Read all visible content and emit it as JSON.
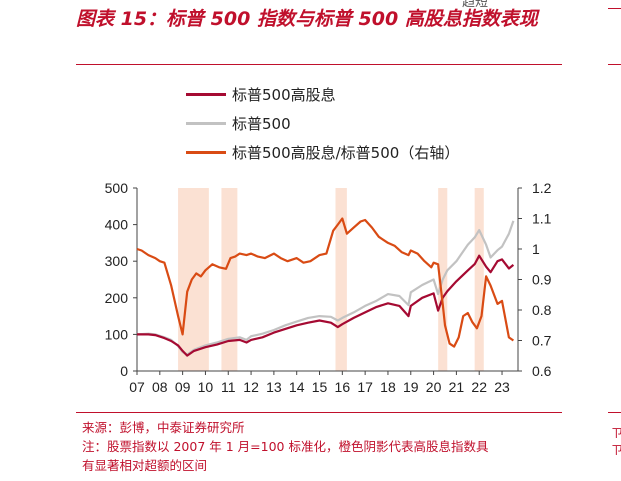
{
  "header": {
    "title": "图表 15：标普 500 指数与标普 500 高股息指数表现",
    "overflow_text": "趋短"
  },
  "edge_marks": [
    "ㄗ",
    "ㄗ"
  ],
  "colors": {
    "accent": "#c0102c",
    "series_high_div": "#a50a32",
    "series_sp500": "#c2c2c2",
    "series_ratio": "#d94b14",
    "shade": "#fbe1d3"
  },
  "footer": {
    "source": "来源：彭博，中泰证券研究所",
    "note_line1": "注：股票指数以 2007 年 1 月=100 标准化，橙色阴影代表高股息指数具",
    "note_line2": "有显著相对超额的区间"
  },
  "chart_data": {
    "type": "line",
    "title": "",
    "x_tick_labels": [
      "07",
      "08",
      "09",
      "10",
      "11",
      "12",
      "13",
      "14",
      "15",
      "16",
      "17",
      "18",
      "19",
      "20",
      "21",
      "22",
      "23"
    ],
    "xlim": [
      2007,
      2023.7
    ],
    "left_axis": {
      "ylim": [
        0,
        500
      ],
      "ticks": [
        "0",
        "100",
        "200",
        "300",
        "400",
        "500"
      ]
    },
    "right_axis": {
      "ylim": [
        0.6,
        1.2
      ],
      "ticks": [
        "0.6",
        "0.7",
        "0.8",
        "0.9",
        "1",
        "1.1",
        "1.2"
      ]
    },
    "shaded_ranges": [
      [
        2008.8,
        2010.15
      ],
      [
        2010.7,
        2011.4
      ],
      [
        2015.7,
        2016.2
      ],
      [
        2020.2,
        2020.6
      ],
      [
        2021.8,
        2022.2
      ]
    ],
    "series": [
      {
        "name": "标普500高股息",
        "axis": "left",
        "x": [
          2007,
          2007.5,
          2007.8,
          2008.2,
          2008.5,
          2008.8,
          2009.0,
          2009.2,
          2009.5,
          2010.0,
          2010.5,
          2011.0,
          2011.5,
          2011.8,
          2012.0,
          2012.5,
          2013.0,
          2013.5,
          2014.0,
          2014.5,
          2015.0,
          2015.5,
          2015.8,
          2016.0,
          2016.5,
          2017.0,
          2017.5,
          2018.0,
          2018.5,
          2018.9,
          2019.0,
          2019.5,
          2020.0,
          2020.2,
          2020.4,
          2020.6,
          2021.0,
          2021.5,
          2021.8,
          2022.0,
          2022.3,
          2022.5,
          2022.8,
          2023.0,
          2023.3,
          2023.5
        ],
        "y": [
          100,
          100,
          98,
          90,
          82,
          70,
          55,
          42,
          55,
          65,
          72,
          82,
          85,
          78,
          85,
          92,
          105,
          115,
          125,
          132,
          138,
          132,
          120,
          128,
          145,
          160,
          175,
          185,
          178,
          150,
          178,
          200,
          212,
          165,
          200,
          218,
          245,
          275,
          292,
          315,
          285,
          270,
          300,
          305,
          280,
          290
        ]
      },
      {
        "name": "标普500",
        "axis": "left",
        "x": [
          2007,
          2007.5,
          2007.8,
          2008.2,
          2008.5,
          2008.8,
          2009.0,
          2009.2,
          2009.5,
          2010.0,
          2010.5,
          2011.0,
          2011.5,
          2011.8,
          2012.0,
          2012.5,
          2013.0,
          2013.5,
          2014.0,
          2014.5,
          2015.0,
          2015.5,
          2015.8,
          2016.0,
          2016.5,
          2017.0,
          2017.5,
          2018.0,
          2018.5,
          2018.9,
          2019.0,
          2019.5,
          2020.0,
          2020.2,
          2020.4,
          2020.6,
          2021.0,
          2021.5,
          2021.8,
          2022.0,
          2022.3,
          2022.5,
          2022.8,
          2023.0,
          2023.3,
          2023.5
        ],
        "y": [
          100,
          102,
          100,
          92,
          85,
          68,
          52,
          45,
          58,
          70,
          78,
          88,
          92,
          85,
          95,
          102,
          112,
          125,
          135,
          145,
          150,
          148,
          138,
          145,
          160,
          178,
          192,
          210,
          205,
          180,
          215,
          235,
          250,
          210,
          250,
          275,
          300,
          345,
          365,
          385,
          345,
          310,
          330,
          340,
          375,
          410
        ]
      },
      {
        "name": "标普500高股息/标普500（右轴）",
        "axis": "right",
        "x": [
          2007,
          2007.2,
          2007.5,
          2007.8,
          2008.0,
          2008.2,
          2008.5,
          2008.8,
          2009.0,
          2009.1,
          2009.2,
          2009.4,
          2009.6,
          2009.8,
          2010.0,
          2010.3,
          2010.6,
          2010.9,
          2011.1,
          2011.3,
          2011.5,
          2011.8,
          2012.0,
          2012.3,
          2012.6,
          2013.0,
          2013.3,
          2013.6,
          2014.0,
          2014.3,
          2014.6,
          2015.0,
          2015.3,
          2015.6,
          2015.8,
          2016.0,
          2016.2,
          2016.5,
          2016.8,
          2017.0,
          2017.3,
          2017.6,
          2018.0,
          2018.3,
          2018.6,
          2018.9,
          2019.0,
          2019.3,
          2019.6,
          2019.9,
          2020.0,
          2020.2,
          2020.4,
          2020.5,
          2020.7,
          2020.9,
          2021.1,
          2021.3,
          2021.5,
          2021.7,
          2021.9,
          2022.1,
          2022.3,
          2022.5,
          2022.8,
          2023.0,
          2023.3,
          2023.5
        ],
        "y": [
          1.0,
          0.995,
          0.98,
          0.97,
          0.96,
          0.955,
          0.88,
          0.78,
          0.72,
          0.79,
          0.86,
          0.9,
          0.92,
          0.91,
          0.93,
          0.95,
          0.94,
          0.935,
          0.97,
          0.975,
          0.985,
          0.98,
          0.985,
          0.975,
          0.97,
          0.985,
          0.97,
          0.96,
          0.97,
          0.955,
          0.96,
          0.98,
          0.985,
          1.06,
          1.08,
          1.1,
          1.05,
          1.07,
          1.09,
          1.095,
          1.07,
          1.04,
          1.02,
          1.01,
          0.99,
          0.98,
          0.995,
          0.985,
          0.96,
          0.94,
          0.955,
          0.95,
          0.82,
          0.75,
          0.69,
          0.68,
          0.71,
          0.78,
          0.79,
          0.76,
          0.74,
          0.78,
          0.91,
          0.88,
          0.82,
          0.83,
          0.71,
          0.7
        ]
      }
    ]
  }
}
